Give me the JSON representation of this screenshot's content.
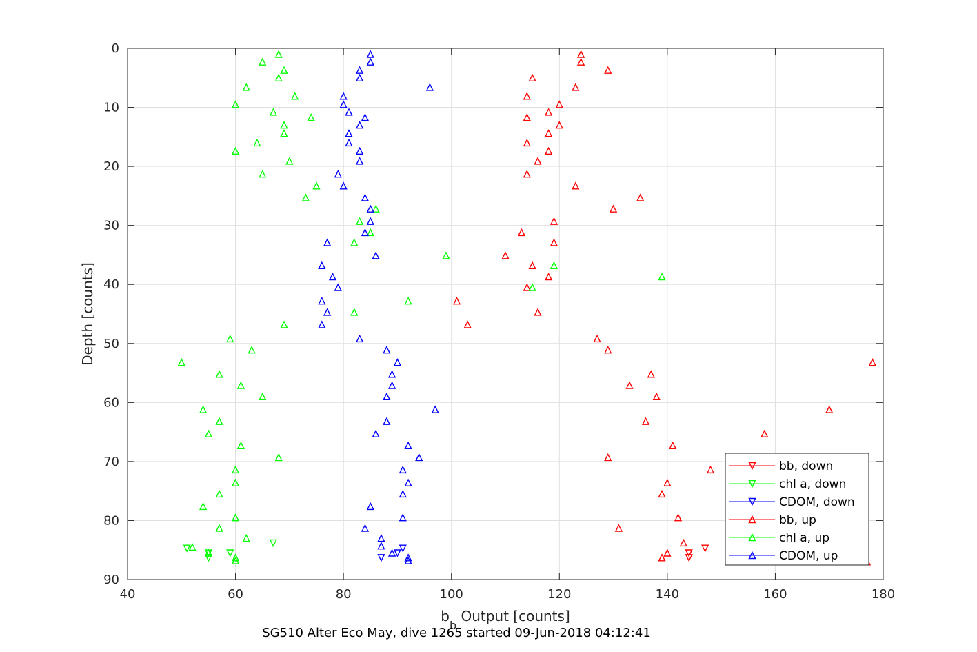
{
  "chart_data": {
    "type": "scatter",
    "title": "",
    "caption": "SG510 Alter Eco May, dive 1265 started 09-Jun-2018 04:12:41",
    "xlabel_main": "b",
    "xlabel_sub": "b",
    "xlabel_rest": " Output [counts]",
    "ylabel": "Depth [counts]",
    "xlim": [
      40,
      180
    ],
    "ylim": [
      0,
      90
    ],
    "y_reversed": true,
    "grid": true,
    "x_ticks": [
      "40",
      "60",
      "80",
      "100",
      "120",
      "140",
      "160",
      "180"
    ],
    "y_ticks": [
      "0",
      "10",
      "20",
      "30",
      "40",
      "50",
      "60",
      "70",
      "80",
      "90"
    ],
    "legend_position": "bottom-right",
    "series": [
      {
        "name": "bb, down",
        "color": "#ff0000",
        "marker": "triangle-down",
        "points": [
          [
            147,
            84.7
          ],
          [
            144,
            85.5
          ],
          [
            144,
            86.3
          ]
        ]
      },
      {
        "name": "chl a, down",
        "color": "#00ff00",
        "marker": "triangle-down",
        "points": [
          [
            67,
            83.8
          ],
          [
            51,
            84.7
          ],
          [
            55,
            85.5
          ],
          [
            59,
            85.5
          ],
          [
            55,
            86.3
          ]
        ]
      },
      {
        "name": "CDOM, down",
        "color": "#0000ff",
        "marker": "triangle-down",
        "points": [
          [
            91,
            84.7
          ],
          [
            90,
            85.5
          ],
          [
            87,
            86.3
          ]
        ]
      },
      {
        "name": "bb, up",
        "color": "#ff0000",
        "marker": "triangle-up",
        "points": [
          [
            124,
            1
          ],
          [
            124,
            2.3
          ],
          [
            129,
            3.7
          ],
          [
            115,
            5
          ],
          [
            123,
            6.6
          ],
          [
            114,
            8.1
          ],
          [
            120,
            9.5
          ],
          [
            118,
            10.8
          ],
          [
            114,
            11.7
          ],
          [
            120,
            13
          ],
          [
            118,
            14.4
          ],
          [
            114,
            16
          ],
          [
            118,
            17.4
          ],
          [
            116,
            19.1
          ],
          [
            114,
            21.3
          ],
          [
            123,
            23.3
          ],
          [
            135,
            25.3
          ],
          [
            130,
            27.2
          ],
          [
            119,
            29.3
          ],
          [
            113,
            31.2
          ],
          [
            119,
            32.9
          ],
          [
            110,
            35.1
          ],
          [
            115,
            36.8
          ],
          [
            118,
            38.7
          ],
          [
            114,
            40.5
          ],
          [
            101,
            42.8
          ],
          [
            116,
            44.7
          ],
          [
            103,
            46.8
          ],
          [
            127,
            49.2
          ],
          [
            129,
            51.1
          ],
          [
            178,
            53.2
          ],
          [
            137,
            55.2
          ],
          [
            133,
            57.1
          ],
          [
            138,
            59
          ],
          [
            170,
            61.2
          ],
          [
            136,
            63.2
          ],
          [
            158,
            65.3
          ],
          [
            141,
            67.3
          ],
          [
            129,
            69.3
          ],
          [
            148,
            71.4
          ],
          [
            140,
            73.6
          ],
          [
            139,
            75.5
          ],
          [
            142,
            79.5
          ],
          [
            131,
            81.3
          ],
          [
            143,
            83.8
          ],
          [
            140,
            85.5
          ],
          [
            139,
            86.3
          ],
          [
            177,
            87
          ]
        ]
      },
      {
        "name": "chl a, up",
        "color": "#00ff00",
        "marker": "triangle-up",
        "points": [
          [
            68,
            1
          ],
          [
            65,
            2.3
          ],
          [
            69,
            3.7
          ],
          [
            68,
            5
          ],
          [
            62,
            6.6
          ],
          [
            71,
            8.1
          ],
          [
            60,
            9.5
          ],
          [
            67,
            10.8
          ],
          [
            74,
            11.7
          ],
          [
            69,
            13
          ],
          [
            69,
            14.4
          ],
          [
            64,
            16
          ],
          [
            60,
            17.4
          ],
          [
            70,
            19.1
          ],
          [
            65,
            21.3
          ],
          [
            75,
            23.3
          ],
          [
            73,
            25.3
          ],
          [
            86,
            27.2
          ],
          [
            83,
            29.3
          ],
          [
            85,
            31.2
          ],
          [
            82,
            32.9
          ],
          [
            99,
            35.1
          ],
          [
            119,
            36.8
          ],
          [
            139,
            38.7
          ],
          [
            115,
            40.5
          ],
          [
            92,
            42.8
          ],
          [
            82,
            44.7
          ],
          [
            69,
            46.8
          ],
          [
            59,
            49.2
          ],
          [
            63,
            51.1
          ],
          [
            50,
            53.2
          ],
          [
            57,
            55.2
          ],
          [
            61,
            57.1
          ],
          [
            65,
            59
          ],
          [
            54,
            61.2
          ],
          [
            57,
            63.2
          ],
          [
            55,
            65.3
          ],
          [
            61,
            67.3
          ],
          [
            68,
            69.3
          ],
          [
            60,
            71.4
          ],
          [
            60,
            73.6
          ],
          [
            57,
            75.5
          ],
          [
            54,
            77.6
          ],
          [
            60,
            79.5
          ],
          [
            57,
            81.3
          ],
          [
            62,
            83
          ],
          [
            52,
            84.5
          ],
          [
            55,
            85.5
          ],
          [
            60,
            86.3
          ],
          [
            60,
            86.8
          ]
        ]
      },
      {
        "name": "CDOM, up",
        "color": "#0000ff",
        "marker": "triangle-up",
        "points": [
          [
            85,
            1
          ],
          [
            85,
            2.3
          ],
          [
            83,
            3.7
          ],
          [
            83,
            5
          ],
          [
            96,
            6.6
          ],
          [
            80,
            8.1
          ],
          [
            80,
            9.5
          ],
          [
            81,
            10.8
          ],
          [
            84,
            11.7
          ],
          [
            83,
            13
          ],
          [
            81,
            14.4
          ],
          [
            81,
            16
          ],
          [
            83,
            17.4
          ],
          [
            83,
            19.1
          ],
          [
            79,
            21.3
          ],
          [
            80,
            23.3
          ],
          [
            84,
            25.3
          ],
          [
            85,
            27.2
          ],
          [
            85,
            29.3
          ],
          [
            84,
            31.2
          ],
          [
            77,
            32.9
          ],
          [
            86,
            35.1
          ],
          [
            76,
            36.8
          ],
          [
            78,
            38.7
          ],
          [
            79,
            40.5
          ],
          [
            76,
            42.8
          ],
          [
            77,
            44.7
          ],
          [
            76,
            46.8
          ],
          [
            83,
            49.2
          ],
          [
            88,
            51.1
          ],
          [
            90,
            53.2
          ],
          [
            89,
            55.2
          ],
          [
            89,
            57.1
          ],
          [
            88,
            59
          ],
          [
            97,
            61.2
          ],
          [
            88,
            63.2
          ],
          [
            86,
            65.3
          ],
          [
            92,
            67.3
          ],
          [
            94,
            69.3
          ],
          [
            91,
            71.4
          ],
          [
            92,
            73.6
          ],
          [
            91,
            75.5
          ],
          [
            85,
            77.6
          ],
          [
            91,
            79.5
          ],
          [
            84,
            81.3
          ],
          [
            87,
            83
          ],
          [
            87,
            84.3
          ],
          [
            89,
            85.5
          ],
          [
            92,
            86.3
          ],
          [
            92,
            86.8
          ]
        ]
      }
    ]
  }
}
